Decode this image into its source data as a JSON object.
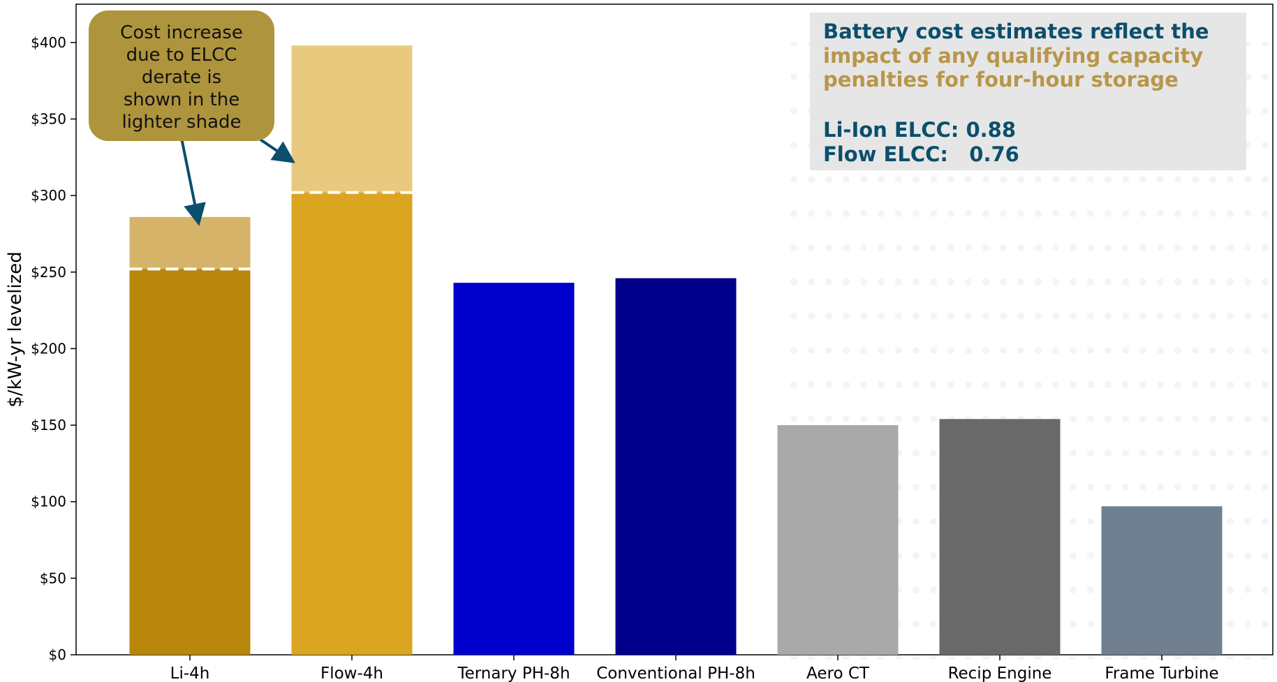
{
  "chart_data": {
    "type": "bar",
    "ylabel": "$/kW-yr levelized",
    "xlabel": "",
    "ylim": [
      0,
      425
    ],
    "yticks": [
      0,
      50,
      100,
      150,
      200,
      250,
      300,
      350,
      400
    ],
    "ytick_labels": [
      "$0",
      "$50",
      "$100",
      "$150",
      "$200",
      "$250",
      "$300",
      "$350",
      "$400"
    ],
    "categories": [
      "Li-4h",
      "Flow-4h",
      "Ternary PH-8h",
      "Conventional PH-8h",
      "Aero CT",
      "Recip Engine",
      "Frame Turbine"
    ],
    "values": [
      286,
      398,
      243,
      246,
      150,
      154,
      97
    ],
    "base_values": [
      252,
      302,
      null,
      null,
      null,
      null,
      null
    ],
    "colors": [
      "#B8860B",
      "#DAA520",
      "#0000CD",
      "#00008B",
      "#A9A9A9",
      "#696969",
      "#708090"
    ],
    "derate_colors": [
      "#D5B46A",
      "#E8C97E",
      null,
      null,
      null,
      null,
      null
    ],
    "grid": false,
    "annotations": {
      "callout_lines": [
        "Cost increase",
        "due to ELCC",
        "derate is",
        "shown in the",
        "lighter shade"
      ],
      "callout_color": "#AE943C",
      "arrow_color": "#0B4F6C"
    },
    "info_box": {
      "headline_1": "Battery cost estimates reflect the",
      "headline_2": "impact of any qualifying capacity",
      "headline_3": "penalties for four-hour storage",
      "elcc_li": "Li-Ion ELCC: 0.88",
      "elcc_flow": "Flow ELCC:   0.76",
      "navy": "#0B4F6C",
      "gold": "#B8964A",
      "background": "#E6E6E6"
    }
  }
}
